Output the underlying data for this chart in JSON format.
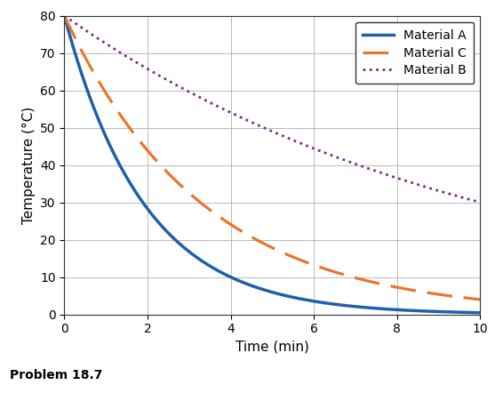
{
  "title": "",
  "xlabel": "Time (min)",
  "ylabel": "Temperature (°C)",
  "xlim": [
    0,
    10
  ],
  "ylim": [
    0,
    80
  ],
  "xticks": [
    0,
    2,
    4,
    6,
    8,
    10
  ],
  "yticks": [
    0,
    10,
    20,
    30,
    40,
    50,
    60,
    70,
    80
  ],
  "material_A": {
    "label": "Material A",
    "color": "#2060a8",
    "linewidth": 2.5,
    "k": 0.52
  },
  "material_C": {
    "label": "Material C",
    "color": "#e8762c",
    "linewidth": 2.3,
    "k": 0.3
  },
  "material_B": {
    "label": "Material B",
    "color": "#7b2d8b",
    "linewidth": 2.0,
    "k": 0.098
  },
  "T0": 80,
  "problem_label": "Problem 18.7",
  "background_color": "#ffffff",
  "legend_fontsize": 10,
  "axis_fontsize": 11,
  "tick_fontsize": 10
}
